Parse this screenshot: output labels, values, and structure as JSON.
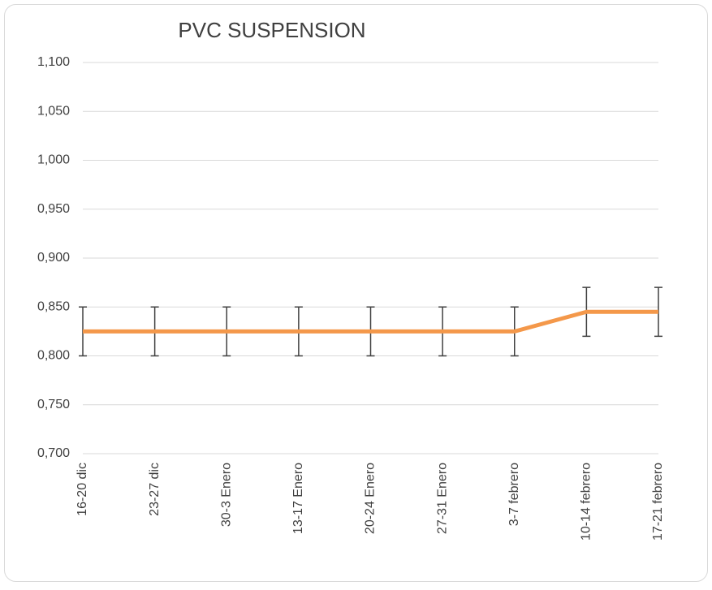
{
  "chart_data": {
    "type": "line",
    "title": "PVC SUSPENSION",
    "categories": [
      "16-20 dic",
      "23-27 dic",
      "30-3 Enero",
      "13-17 Enero",
      "20-24 Enero",
      "27-31 Enero",
      "3-7 febrero",
      "10-14 febrero",
      "17-21 febrero"
    ],
    "series": [
      {
        "color": "#f4984a",
        "error_color": "#404040",
        "values": [
          0.825,
          0.825,
          0.825,
          0.825,
          0.825,
          0.825,
          0.825,
          0.845,
          0.845
        ],
        "errors": [
          0.025,
          0.025,
          0.025,
          0.025,
          0.025,
          0.025,
          0.025,
          0.025,
          0.025
        ]
      }
    ],
    "ylim": [
      0.7,
      1.1
    ],
    "yticks": [
      {
        "value": 0.7,
        "label": "0,700"
      },
      {
        "value": 0.75,
        "label": "0,750"
      },
      {
        "value": 0.8,
        "label": "0,800"
      },
      {
        "value": 0.85,
        "label": "0,850"
      },
      {
        "value": 0.9,
        "label": "0,900"
      },
      {
        "value": 0.95,
        "label": "0,950"
      },
      {
        "value": 1.0,
        "label": "1,000"
      },
      {
        "value": 1.05,
        "label": "1,050"
      },
      {
        "value": 1.1,
        "label": "1,100"
      }
    ],
    "grid": true
  }
}
